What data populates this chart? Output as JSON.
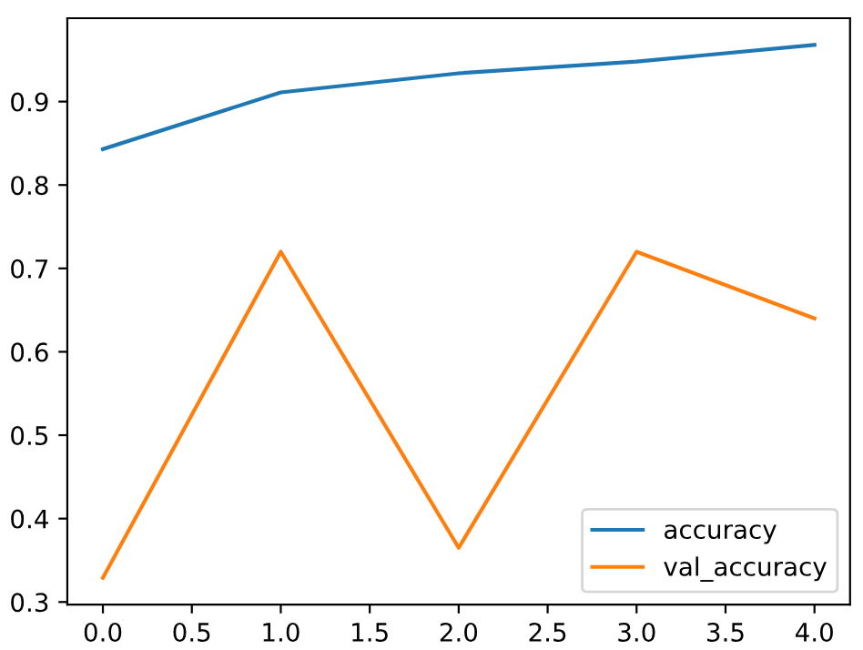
{
  "chart_data": {
    "type": "line",
    "x": [
      0,
      1,
      2,
      3,
      4
    ],
    "series": [
      {
        "name": "accuracy",
        "color": "#1f77b4",
        "values": [
          0.843,
          0.911,
          0.934,
          0.948,
          0.968
        ]
      },
      {
        "name": "val_accuracy",
        "color": "#ff7f0e",
        "values": [
          0.329,
          0.72,
          0.365,
          0.72,
          0.64
        ]
      }
    ],
    "xlim": [
      -0.2,
      4.2
    ],
    "xticks": [
      {
        "value": 0,
        "label": "0.0"
      },
      {
        "value": 0.5,
        "label": "0.5"
      },
      {
        "value": 1,
        "label": "1.0"
      },
      {
        "value": 1.5,
        "label": "1.5"
      },
      {
        "value": 2,
        "label": "2.0"
      },
      {
        "value": 2.5,
        "label": "2.5"
      },
      {
        "value": 3,
        "label": "3.0"
      },
      {
        "value": 3.5,
        "label": "3.5"
      },
      {
        "value": 4,
        "label": "4.0"
      }
    ],
    "ylim": [
      0.297,
      1.0
    ],
    "yticks": [
      {
        "value": 0.3,
        "label": "0.3"
      },
      {
        "value": 0.4,
        "label": "0.4"
      },
      {
        "value": 0.5,
        "label": "0.5"
      },
      {
        "value": 0.6,
        "label": "0.6"
      },
      {
        "value": 0.7,
        "label": "0.7"
      },
      {
        "value": 0.8,
        "label": "0.8"
      },
      {
        "value": 0.9,
        "label": "0.9"
      }
    ],
    "legend": "bottom right",
    "grid": false
  }
}
